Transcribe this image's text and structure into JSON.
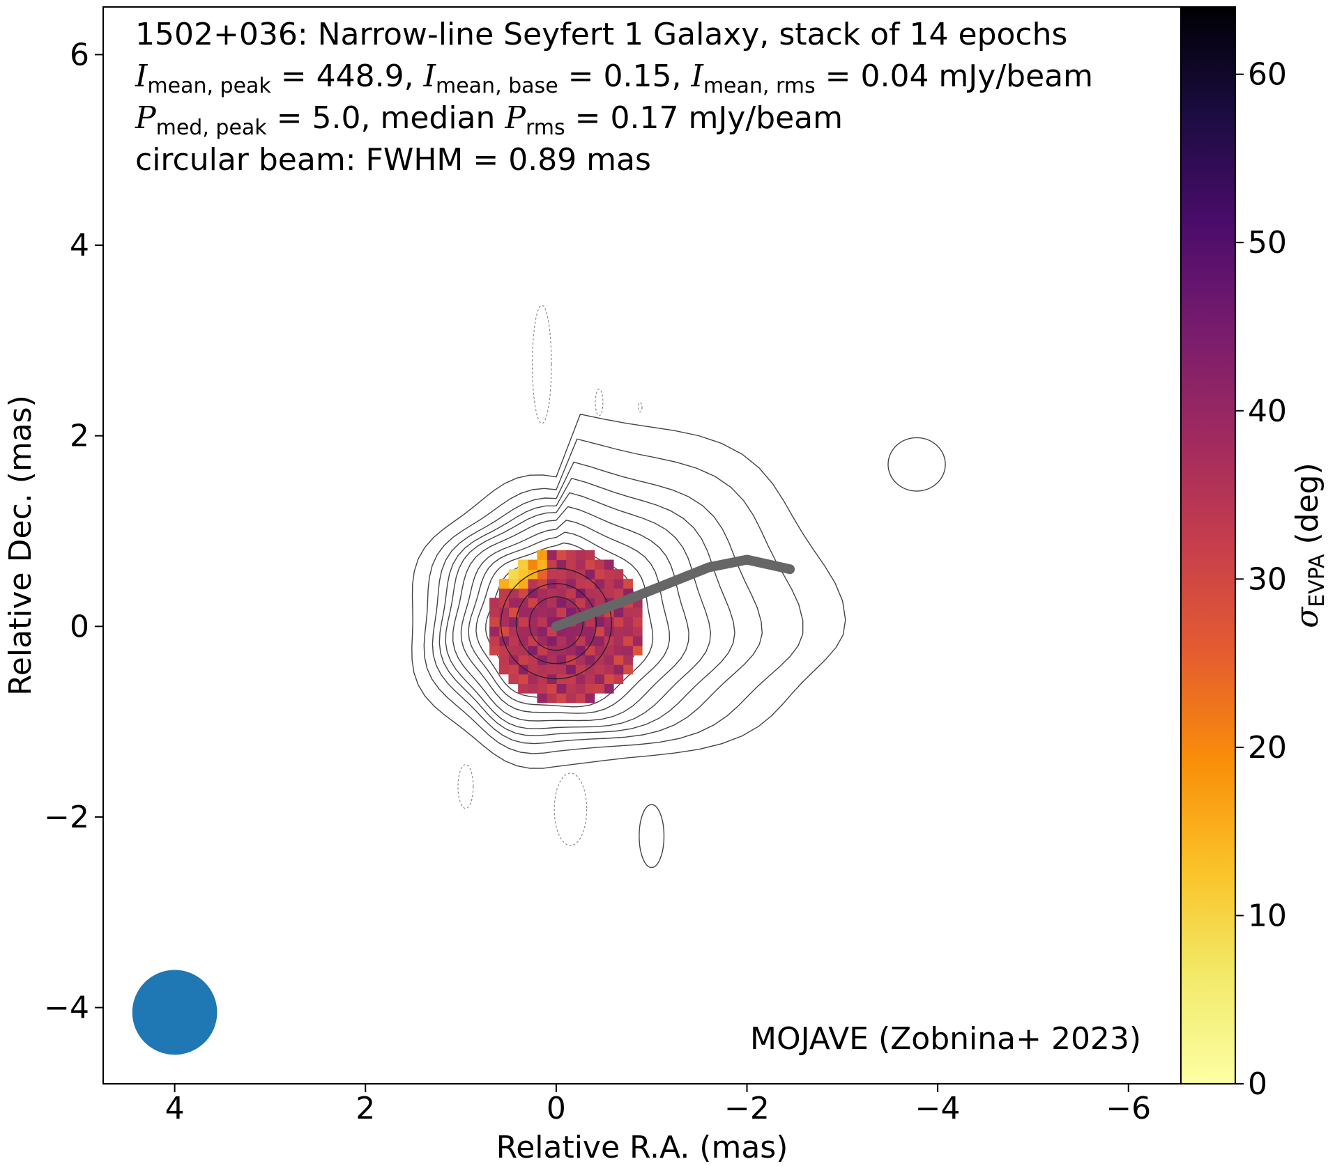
{
  "chart_data": {
    "type": "heatmap",
    "title_lines": {
      "line1": "1502+036: Narrow-line Seyfert 1 Galaxy, stack of 14 epochs",
      "line2": {
        "i1_sym": "I",
        "i1_sub": "mean, peak",
        "i1_val": " = 448.9, ",
        "i2_sym": "I",
        "i2_sub": "mean, base",
        "i2_val": " = 0.15, ",
        "i3_sym": "I",
        "i3_sub": "mean, rms",
        "i3_val": " = 0.04 mJy/beam"
      },
      "line3": {
        "p1_sym": "P",
        "p1_sub": "med, peak",
        "p1_val": " = 5.0, median ",
        "p2_sym": "P",
        "p2_sub": "rms",
        "p2_val": " = 0.17 mJy/beam"
      },
      "line4": "circular beam: FWHM = 0.89 mas"
    },
    "credit": "MOJAVE (Zobnina+ 2023)",
    "xlabel": "Relative R.A. (mas)",
    "ylabel": "Relative Dec. (mas)",
    "colorbar_label_symbol": "σ",
    "colorbar_label_sub": "EVPA",
    "colorbar_label_unit": " (deg)",
    "xlim": [
      4.75,
      -6.55
    ],
    "ylim": [
      -4.8,
      6.5
    ],
    "x_ticks": [
      4,
      2,
      0,
      -2,
      -4,
      -6
    ],
    "x_tick_labels": [
      "4",
      "2",
      "0",
      "−2",
      "−4",
      "−6"
    ],
    "y_ticks": [
      -4,
      -2,
      0,
      2,
      4,
      6
    ],
    "y_tick_labels": [
      "−4",
      "−2",
      "0",
      "2",
      "4",
      "6"
    ],
    "colorbar_range": [
      0,
      64
    ],
    "colorbar_ticks": [
      0,
      10,
      20,
      30,
      40,
      50,
      60
    ],
    "colorbar_tick_labels": [
      "0",
      "10",
      "20",
      "30",
      "40",
      "50",
      "60"
    ],
    "colormap": "inferno_r",
    "beam": {
      "x": 4.0,
      "y": -4.05,
      "fwhm_mas": 0.89,
      "color": "#1f77b4"
    },
    "core": {
      "x": 0,
      "y": 0,
      "radius_mas": 0.8,
      "value_deg": 40
    },
    "ridgeline": [
      [
        0,
        0
      ],
      [
        -0.4,
        0.15
      ],
      [
        -0.8,
        0.3
      ],
      [
        -1.2,
        0.46
      ],
      [
        -1.6,
        0.62
      ],
      [
        -2.0,
        0.7
      ],
      [
        -2.45,
        0.6
      ]
    ],
    "ridgeline_color": "#666666",
    "contour_color": "#444444"
  }
}
